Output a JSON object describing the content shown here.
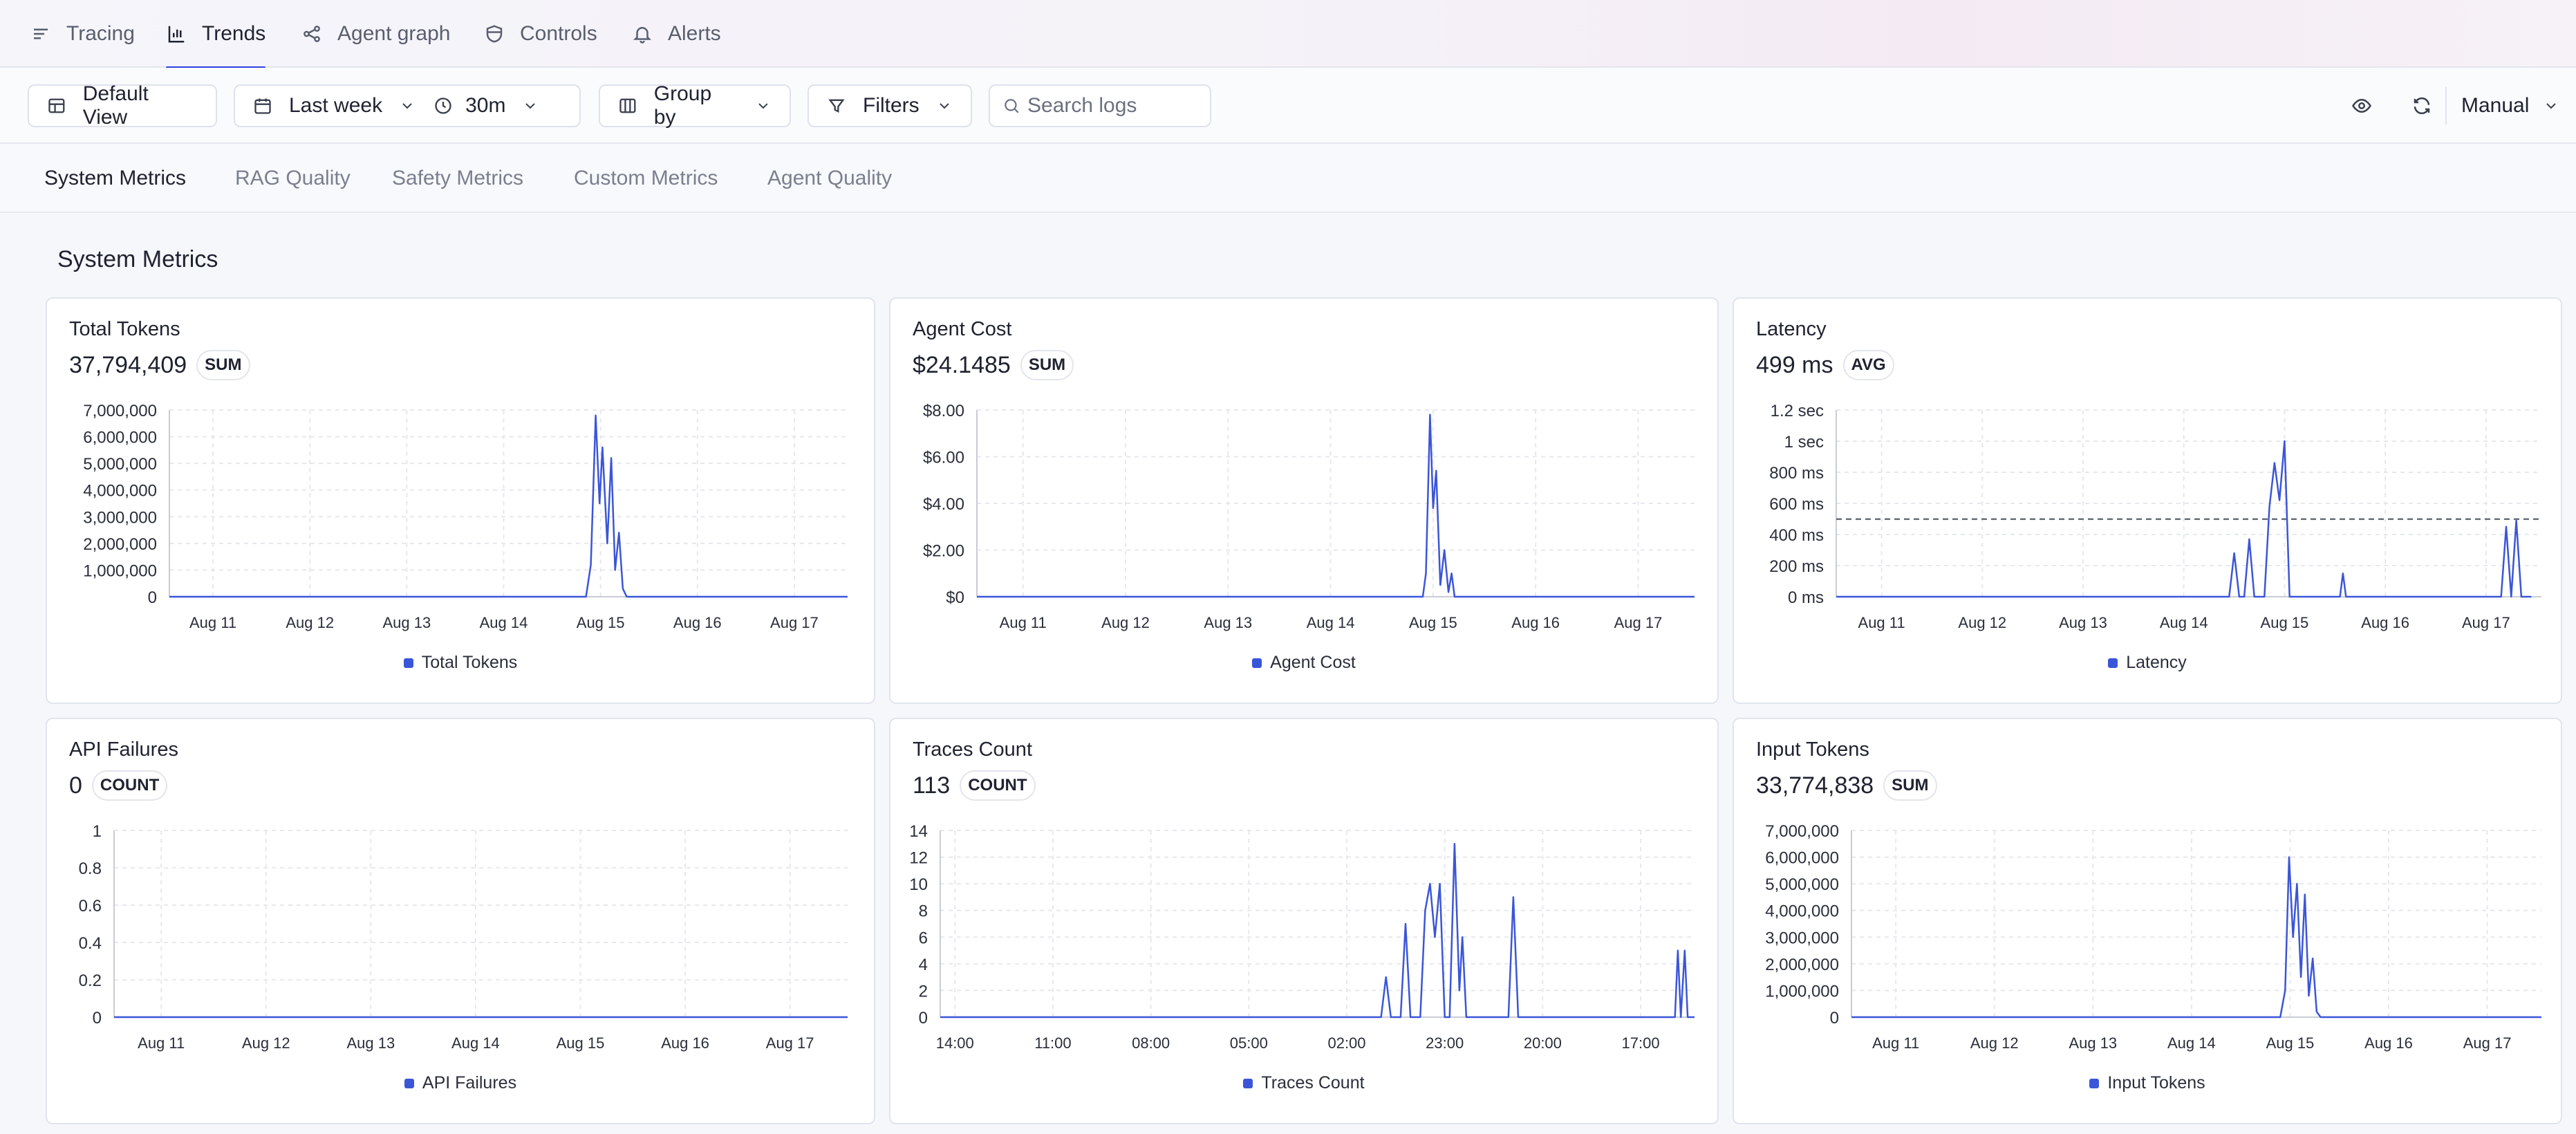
{
  "nav": {
    "tabs": [
      {
        "label": "Tracing",
        "icon": "list-icon"
      },
      {
        "label": "Trends",
        "icon": "bar-chart-icon",
        "active": true
      },
      {
        "label": "Agent graph",
        "icon": "graph-nodes-icon"
      },
      {
        "label": "Controls",
        "icon": "shield-icon"
      },
      {
        "label": "Alerts",
        "icon": "bell-icon"
      }
    ]
  },
  "toolbar": {
    "view_label": "Default View",
    "range_label": "Last week",
    "interval_label": "30m",
    "group_label": "Group by",
    "filters_label": "Filters",
    "search_placeholder": "Search logs",
    "refresh_mode": "Manual"
  },
  "subtabs": [
    "System Metrics",
    "RAG Quality",
    "Safety Metrics",
    "Custom Metrics",
    "Agent Quality"
  ],
  "section_title": "System Metrics",
  "accent_color": "#3b55d9",
  "cards": [
    {
      "title": "Total Tokens",
      "value": "37,794,409",
      "agg": "SUM",
      "legend": "Total Tokens"
    },
    {
      "title": "Agent Cost",
      "value": "$24.1485",
      "agg": "SUM",
      "legend": "Agent Cost"
    },
    {
      "title": "Latency",
      "value": "499 ms",
      "agg": "AVG",
      "legend": "Latency"
    },
    {
      "title": "API Failures",
      "value": "0",
      "agg": "COUNT",
      "legend": "API Failures"
    },
    {
      "title": "Traces Count",
      "value": "113",
      "agg": "COUNT",
      "legend": "Traces Count"
    },
    {
      "title": "Input Tokens",
      "value": "33,774,838",
      "agg": "SUM",
      "legend": "Input Tokens"
    }
  ],
  "chart_data": [
    {
      "type": "line",
      "title": "Total Tokens",
      "ytick_labels": [
        "0",
        "1,000,000",
        "2,000,000",
        "3,000,000",
        "4,000,000",
        "5,000,000",
        "6,000,000",
        "7,000,000"
      ],
      "ylim": [
        0,
        7000000
      ],
      "xlim": [
        0,
        7
      ],
      "xtick_labels": [
        "Aug 11",
        "Aug 12",
        "Aug 13",
        "Aug 14",
        "Aug 15",
        "Aug 16",
        "Aug 17"
      ],
      "xtick_values": [
        0.45,
        1.45,
        2.45,
        3.45,
        4.45,
        5.45,
        6.45
      ],
      "series": [
        {
          "name": "Total Tokens",
          "points": [
            [
              0,
              0
            ],
            [
              4.3,
              0
            ],
            [
              4.35,
              1200000
            ],
            [
              4.4,
              6800000
            ],
            [
              4.44,
              3500000
            ],
            [
              4.47,
              5600000
            ],
            [
              4.52,
              2000000
            ],
            [
              4.56,
              5200000
            ],
            [
              4.6,
              1000000
            ],
            [
              4.64,
              2400000
            ],
            [
              4.68,
              300000
            ],
            [
              4.72,
              0
            ],
            [
              7,
              0
            ]
          ]
        }
      ],
      "grid": true
    },
    {
      "type": "line",
      "title": "Agent Cost",
      "ytick_labels": [
        "$0",
        "$2.00",
        "$4.00",
        "$6.00",
        "$8.00"
      ],
      "ylim": [
        0,
        8
      ],
      "xlim": [
        0,
        7
      ],
      "xtick_labels": [
        "Aug 11",
        "Aug 12",
        "Aug 13",
        "Aug 14",
        "Aug 15",
        "Aug 16",
        "Aug 17"
      ],
      "xtick_values": [
        0.45,
        1.45,
        2.45,
        3.45,
        4.45,
        5.45,
        6.45
      ],
      "series": [
        {
          "name": "Agent Cost",
          "points": [
            [
              0,
              0
            ],
            [
              4.35,
              0
            ],
            [
              4.38,
              1.0
            ],
            [
              4.42,
              7.8
            ],
            [
              4.45,
              3.8
            ],
            [
              4.48,
              5.4
            ],
            [
              4.52,
              0.5
            ],
            [
              4.56,
              2.0
            ],
            [
              4.6,
              0.2
            ],
            [
              4.63,
              1.0
            ],
            [
              4.66,
              0
            ],
            [
              7,
              0
            ]
          ]
        }
      ],
      "grid": true
    },
    {
      "type": "line",
      "title": "Latency",
      "ytick_labels": [
        "0 ms",
        "200 ms",
        "400 ms",
        "600 ms",
        "800 ms",
        "1 sec",
        "1.2 sec"
      ],
      "ylim": [
        0,
        1200
      ],
      "xlim": [
        0,
        7
      ],
      "xtick_labels": [
        "Aug 11",
        "Aug 12",
        "Aug 13",
        "Aug 14",
        "Aug 15",
        "Aug 16",
        "Aug 17"
      ],
      "xtick_values": [
        0.45,
        1.45,
        2.45,
        3.45,
        4.45,
        5.45,
        6.45
      ],
      "series": [
        {
          "name": "Latency",
          "points": [
            [
              0,
              0
            ],
            [
              3.9,
              0
            ],
            [
              3.95,
              280
            ],
            [
              4.0,
              0
            ],
            [
              4.05,
              0
            ],
            [
              4.1,
              370
            ],
            [
              4.15,
              0
            ],
            [
              4.25,
              0
            ],
            [
              4.3,
              580
            ],
            [
              4.35,
              860
            ],
            [
              4.4,
              620
            ],
            [
              4.45,
              1000
            ],
            [
              4.5,
              0
            ],
            [
              5.0,
              0
            ],
            [
              5.03,
              150
            ],
            [
              5.06,
              0
            ],
            [
              6.6,
              0
            ],
            [
              6.65,
              450
            ],
            [
              6.7,
              0
            ],
            [
              6.75,
              490
            ],
            [
              6.8,
              0
            ],
            [
              6.9,
              0
            ]
          ]
        }
      ],
      "reference_line": 499,
      "grid": true
    },
    {
      "type": "line",
      "title": "API Failures",
      "ytick_labels": [
        "0",
        "0.2",
        "0.4",
        "0.6",
        "0.8",
        "1"
      ],
      "ylim": [
        0,
        1
      ],
      "xlim": [
        0,
        7
      ],
      "xtick_labels": [
        "Aug 11",
        "Aug 12",
        "Aug 13",
        "Aug 14",
        "Aug 15",
        "Aug 16",
        "Aug 17"
      ],
      "xtick_values": [
        0.45,
        1.45,
        2.45,
        3.45,
        4.45,
        5.45,
        6.45
      ],
      "series": [
        {
          "name": "API Failures",
          "points": [
            [
              0,
              0
            ],
            [
              7,
              0
            ]
          ]
        }
      ],
      "grid": true
    },
    {
      "type": "line",
      "title": "Traces Count",
      "ytick_labels": [
        "0",
        "2",
        "4",
        "6",
        "8",
        "10",
        "12",
        "14"
      ],
      "ylim": [
        0,
        14
      ],
      "xlim": [
        0,
        7.7
      ],
      "xtick_labels": [
        "14:00",
        "11:00",
        "08:00",
        "05:00",
        "02:00",
        "23:00",
        "20:00",
        "17:00"
      ],
      "xtick_values": [
        0.15,
        1.15,
        2.15,
        3.15,
        4.15,
        5.15,
        6.15,
        7.15
      ],
      "series": [
        {
          "name": "Traces Count",
          "points": [
            [
              0,
              0
            ],
            [
              4.5,
              0
            ],
            [
              4.55,
              3
            ],
            [
              4.6,
              0
            ],
            [
              4.7,
              0
            ],
            [
              4.75,
              7
            ],
            [
              4.8,
              0
            ],
            [
              4.9,
              0
            ],
            [
              4.95,
              8
            ],
            [
              5.0,
              10
            ],
            [
              5.05,
              6
            ],
            [
              5.1,
              10
            ],
            [
              5.15,
              0
            ],
            [
              5.2,
              0
            ],
            [
              5.25,
              13
            ],
            [
              5.3,
              2
            ],
            [
              5.33,
              6
            ],
            [
              5.37,
              0
            ],
            [
              5.8,
              0
            ],
            [
              5.85,
              9
            ],
            [
              5.9,
              0
            ],
            [
              7.5,
              0
            ],
            [
              7.53,
              5
            ],
            [
              7.56,
              0
            ],
            [
              7.6,
              5
            ],
            [
              7.63,
              0
            ],
            [
              7.7,
              0
            ]
          ]
        }
      ],
      "grid": true
    },
    {
      "type": "line",
      "title": "Input Tokens",
      "ytick_labels": [
        "0",
        "1,000,000",
        "2,000,000",
        "3,000,000",
        "4,000,000",
        "5,000,000",
        "6,000,000",
        "7,000,000"
      ],
      "ylim": [
        0,
        7000000
      ],
      "xlim": [
        0,
        7
      ],
      "xtick_labels": [
        "Aug 11",
        "Aug 12",
        "Aug 13",
        "Aug 14",
        "Aug 15",
        "Aug 16",
        "Aug 17"
      ],
      "xtick_values": [
        0.45,
        1.45,
        2.45,
        3.45,
        4.45,
        5.45,
        6.45
      ],
      "series": [
        {
          "name": "Input Tokens",
          "points": [
            [
              0,
              0
            ],
            [
              4.35,
              0
            ],
            [
              4.4,
              1000000
            ],
            [
              4.44,
              6000000
            ],
            [
              4.48,
              3000000
            ],
            [
              4.52,
              5000000
            ],
            [
              4.56,
              1500000
            ],
            [
              4.6,
              4600000
            ],
            [
              4.64,
              800000
            ],
            [
              4.68,
              2200000
            ],
            [
              4.72,
              200000
            ],
            [
              4.76,
              0
            ],
            [
              7,
              0
            ]
          ]
        }
      ],
      "grid": true
    }
  ]
}
